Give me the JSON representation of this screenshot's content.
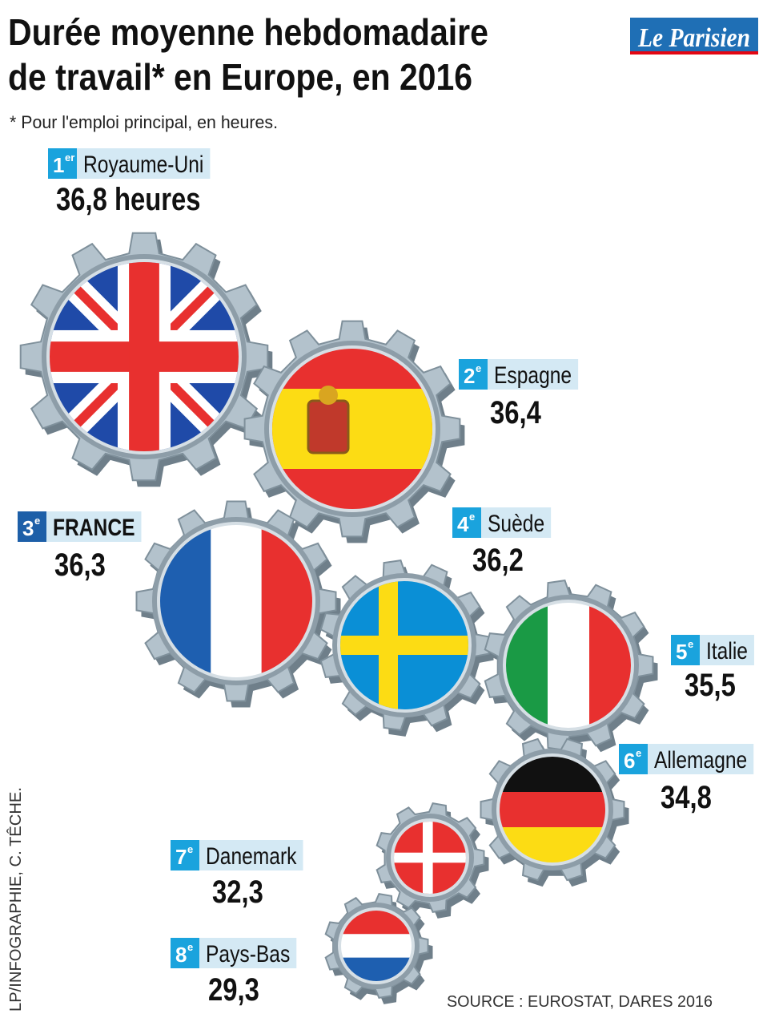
{
  "header": {
    "title": [
      "Durée moyenne hebdomadaire",
      "de travail* en Europe, en 2016"
    ],
    "note": "* Pour l'emploi principal, en heures.",
    "logo": "Le Parisien"
  },
  "rankings": [
    {
      "rank": "1",
      "suffix": "er",
      "country": "Royaume-Uni",
      "value": "36,8 heures"
    },
    {
      "rank": "2",
      "suffix": "e",
      "country": "Espagne",
      "value": "36,4"
    },
    {
      "rank": "3",
      "suffix": "e",
      "country": "FRANCE",
      "value": "36,3"
    },
    {
      "rank": "4",
      "suffix": "e",
      "country": "Suède",
      "value": "36,2"
    },
    {
      "rank": "5",
      "suffix": "e",
      "country": "Italie",
      "value": "35,5"
    },
    {
      "rank": "6",
      "suffix": "e",
      "country": "Allemagne",
      "value": "34,8"
    },
    {
      "rank": "7",
      "suffix": "e",
      "country": "Danemark",
      "value": "32,3"
    },
    {
      "rank": "8",
      "suffix": "e",
      "country": "Pays-Bas",
      "value": "29,3"
    }
  ],
  "footer": {
    "credit": "LP/INFOGRAPHIE, C. TÊCHE.",
    "source": "SOURCE : EUROSTAT, DARES 2016"
  }
}
